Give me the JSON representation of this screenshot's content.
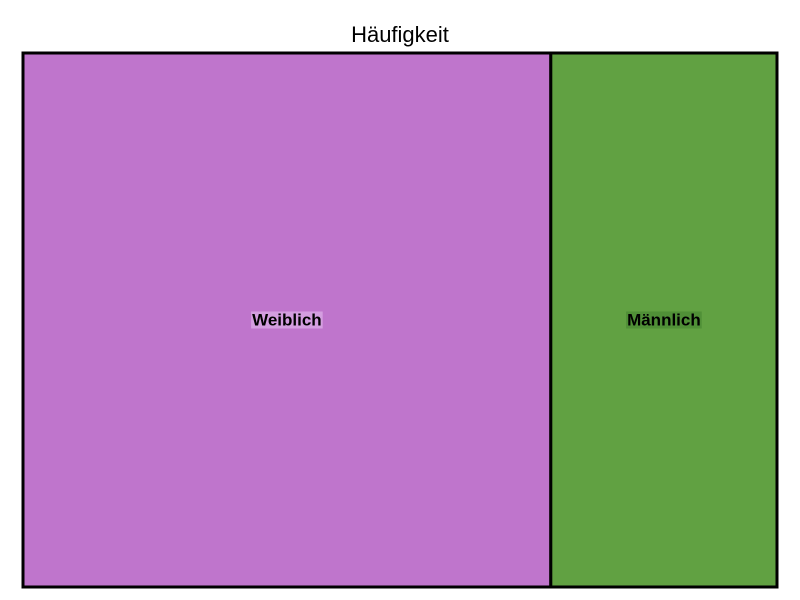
{
  "chart_data": {
    "type": "treemap",
    "title": "Häufigkeit",
    "categories": [
      "Weiblich",
      "Männlich"
    ],
    "values": [
      70,
      30
    ],
    "colors": [
      "#bf75cc",
      "#61a142"
    ],
    "label_bg_colors": [
      "#d49ee0",
      "#509037"
    ],
    "border_color": "#000000"
  }
}
